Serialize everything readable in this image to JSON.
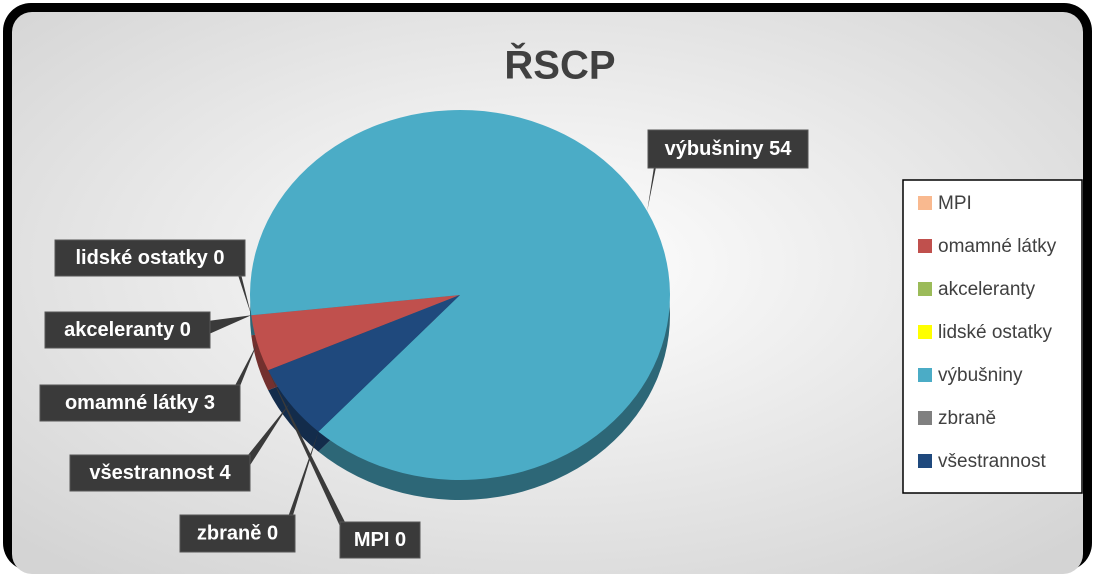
{
  "chart_data": {
    "type": "pie",
    "title": "ŘSCP",
    "categories": [
      "MPI",
      "omamné látky",
      "akceleranty",
      "lidské ostatky",
      "výbušniny",
      "zbraně",
      "všestrannost"
    ],
    "values": [
      0,
      3,
      0,
      0,
      54,
      0,
      4
    ],
    "colors": [
      "#f9b98f",
      "#c0504d",
      "#9bbb59",
      "#ffff00",
      "#4bacc6",
      "#808080",
      "#1f497d"
    ],
    "legend": "right"
  }
}
